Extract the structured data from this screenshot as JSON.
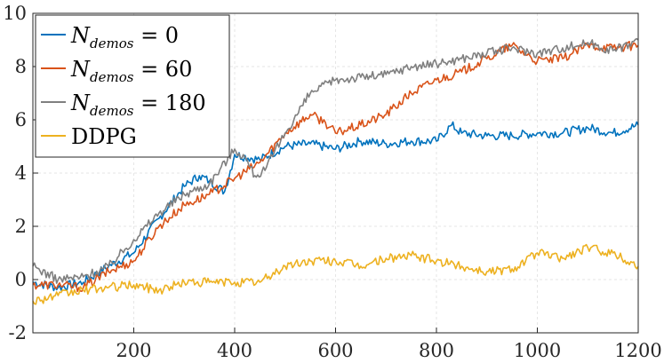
{
  "chart_data": {
    "type": "line",
    "title": "",
    "xlabel": "",
    "ylabel": "",
    "xlim": [
      0,
      1200
    ],
    "ylim": [
      -2,
      10
    ],
    "xticks": [
      200,
      400,
      600,
      800,
      1000,
      1200
    ],
    "yticks": [
      -2,
      0,
      2,
      4,
      6,
      8,
      10
    ],
    "xtick_labels": [
      "200",
      "400",
      "600",
      "800",
      "1000",
      "1200"
    ],
    "ytick_labels": [
      "-2",
      "0",
      "2",
      "4",
      "6",
      "8",
      "10"
    ],
    "grid": true,
    "legend_position": "top-left",
    "series": [
      {
        "name": "N_demos = 0",
        "legend": {
          "base": "N",
          "sub": "demos",
          "rest": " = 0"
        },
        "color": "#0072BD",
        "x": [
          0,
          50,
          100,
          150,
          200,
          250,
          300,
          330,
          350,
          380,
          400,
          450,
          500,
          550,
          600,
          650,
          700,
          750,
          800,
          830,
          850,
          900,
          950,
          1000,
          1050,
          1100,
          1150,
          1200
        ],
        "y": [
          -0.1,
          -0.3,
          -0.1,
          0.5,
          1.0,
          2.3,
          3.5,
          3.9,
          3.7,
          3.3,
          4.7,
          4.5,
          5.0,
          5.1,
          4.9,
          5.2,
          5.1,
          5.2,
          5.2,
          5.8,
          5.5,
          5.4,
          5.4,
          5.5,
          5.5,
          5.7,
          5.5,
          5.8
        ]
      },
      {
        "name": "N_demos = 60",
        "legend": {
          "base": "N",
          "sub": "demos",
          "rest": " = 60"
        },
        "color": "#D95319",
        "x": [
          0,
          50,
          100,
          150,
          200,
          250,
          300,
          350,
          400,
          450,
          500,
          550,
          580,
          600,
          650,
          700,
          750,
          800,
          850,
          900,
          950,
          1000,
          1050,
          1100,
          1150,
          1200
        ],
        "y": [
          -0.2,
          -0.2,
          -0.3,
          0.3,
          0.7,
          2.0,
          2.8,
          3.2,
          3.8,
          4.4,
          5.5,
          6.2,
          5.9,
          5.5,
          5.8,
          6.2,
          7.0,
          7.5,
          7.8,
          8.3,
          8.8,
          8.2,
          8.3,
          8.8,
          8.7,
          8.8
        ]
      },
      {
        "name": "N_demos = 180",
        "legend": {
          "base": "N",
          "sub": "demos",
          "rest": " = 180"
        },
        "color": "#7F7F7F",
        "x": [
          0,
          50,
          100,
          150,
          200,
          250,
          300,
          350,
          400,
          420,
          440,
          460,
          500,
          550,
          600,
          650,
          700,
          750,
          800,
          850,
          900,
          950,
          1000,
          1050,
          1100,
          1150,
          1200
        ],
        "y": [
          0.5,
          0.0,
          0.1,
          0.5,
          1.5,
          2.5,
          3.2,
          3.6,
          4.9,
          4.6,
          3.9,
          4.1,
          5.5,
          7.0,
          7.5,
          7.6,
          7.7,
          8.0,
          8.1,
          8.3,
          8.5,
          8.7,
          8.5,
          8.7,
          8.9,
          8.6,
          9.0
        ]
      },
      {
        "name": "DDPG",
        "legend": {
          "base": "DDPG",
          "sub": "",
          "rest": ""
        },
        "color": "#EDB120",
        "x": [
          0,
          50,
          100,
          150,
          200,
          250,
          300,
          350,
          400,
          450,
          500,
          550,
          600,
          650,
          700,
          750,
          800,
          850,
          900,
          950,
          1000,
          1050,
          1100,
          1150,
          1200
        ],
        "y": [
          -0.8,
          -0.6,
          -0.4,
          -0.3,
          -0.2,
          -0.4,
          -0.1,
          -0.1,
          -0.1,
          -0.1,
          0.5,
          0.7,
          0.7,
          0.5,
          0.8,
          0.9,
          0.7,
          0.5,
          0.3,
          0.4,
          1.0,
          0.8,
          1.2,
          1.0,
          0.5
        ]
      }
    ]
  }
}
